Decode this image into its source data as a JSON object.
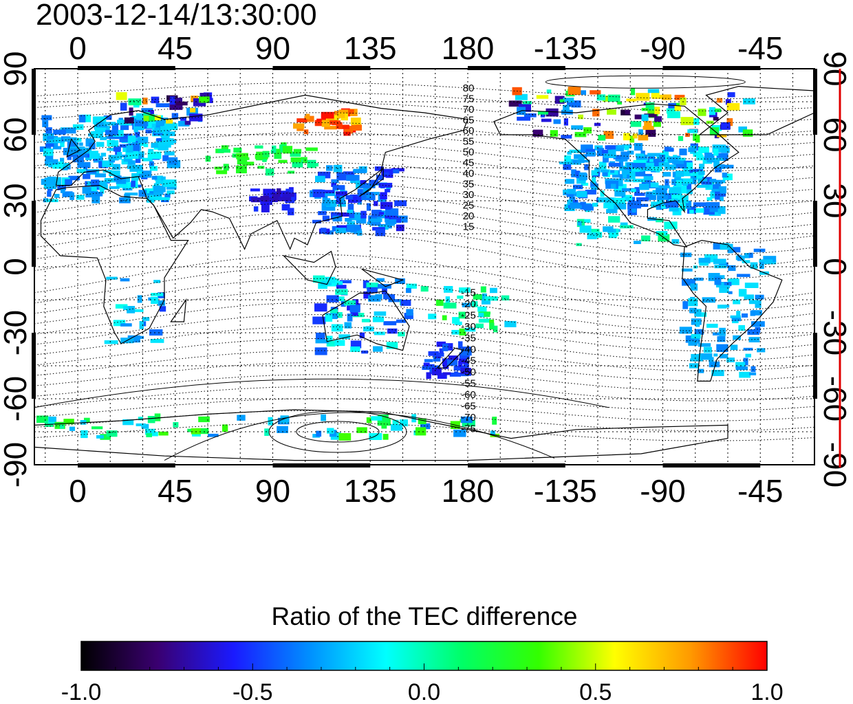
{
  "timestamp": "2003-12-14/13:30:00",
  "map": {
    "lon_ticks": [
      "0",
      "45",
      "90",
      "135",
      "180",
      "-135",
      "-90",
      "-45"
    ],
    "lat_ticks": [
      "90",
      "60",
      "30",
      "0",
      "-30",
      "-60",
      "-90"
    ],
    "lon_range": [
      -20,
      340
    ],
    "lat_range": [
      -90,
      90
    ],
    "grid": true,
    "contour_labels_north": [
      "80",
      "75",
      "70",
      "65",
      "60",
      "55",
      "50",
      "45",
      "40",
      "35",
      "30",
      "25",
      "20",
      "15"
    ],
    "contour_labels_south": [
      "-15",
      "-20",
      "-25",
      "-30",
      "-35",
      "-40",
      "-45",
      "-50",
      "-55",
      "-60",
      "-65",
      "-70",
      "-75"
    ]
  },
  "colorbar": {
    "title": "Ratio of the TEC difference",
    "tick_labels": [
      "-1.0",
      "-0.5",
      "0.0",
      "0.5",
      "1.0"
    ],
    "range": [
      -1.0,
      1.0
    ],
    "colors": [
      "#000000",
      "#3a0070",
      "#1a1aff",
      "#0090ff",
      "#00ffff",
      "#00ff66",
      "#33ff00",
      "#ffff00",
      "#ff9900",
      "#ff0000"
    ]
  }
}
